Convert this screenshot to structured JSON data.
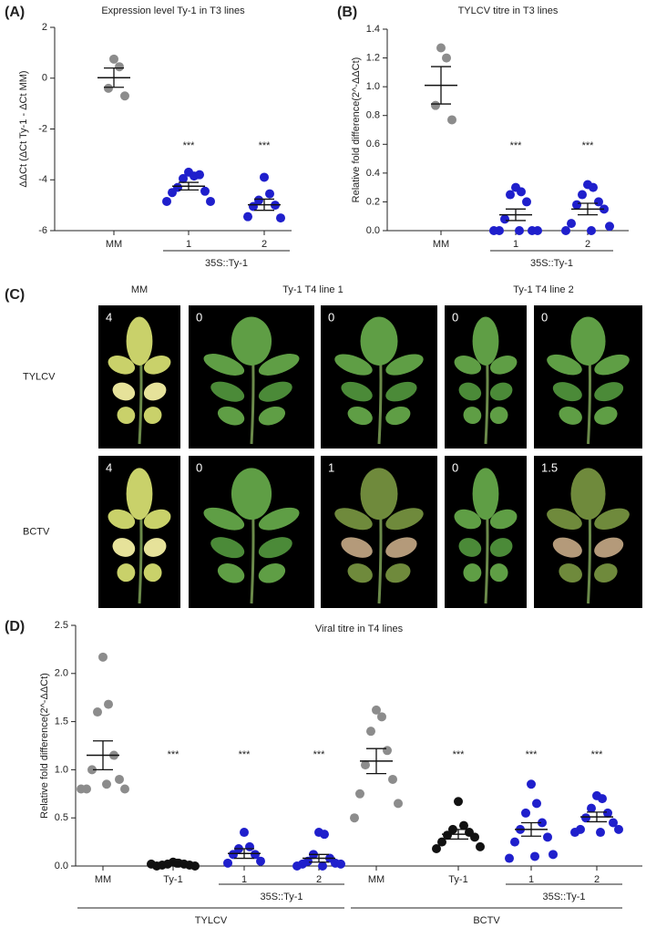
{
  "chart_data": [
    {
      "type": "dot",
      "panel": "(A)",
      "title": "Expression level Ty-1 in T3 lines",
      "ylabel": "ΔΔCt (ΔCt Ty-1 - ΔCt MM)",
      "categories": [
        "MM",
        "1",
        "2"
      ],
      "colors": [
        "#8c8c8c",
        "#1f1fcc",
        "#1f1fcc"
      ],
      "points": [
        [
          0.75,
          0.45,
          -0.4,
          -0.7
        ],
        [
          -3.7,
          -3.85,
          -3.95,
          -3.8,
          -4.3,
          -4.45,
          -4.5,
          -4.85,
          -4.85
        ],
        [
          -3.9,
          -4.55,
          -4.8,
          -5.0,
          -5.05,
          -5.5,
          -5.45
        ]
      ],
      "means": [
        0.02,
        -4.25,
        -4.98
      ],
      "sems": [
        0.38,
        0.15,
        0.22
      ],
      "annotations": [
        null,
        "***",
        "***"
      ],
      "groups": [
        {
          "label": "35S::Ty-1",
          "span": [
            1,
            2
          ]
        }
      ],
      "ylim": [
        -6,
        2
      ],
      "yticks": [
        -6,
        -4,
        -2,
        0,
        2
      ]
    },
    {
      "type": "dot",
      "panel": "(B)",
      "title": "TYLCV titre in T3 lines",
      "ylabel": "Relative fold difference(2^-ΔΔCt)",
      "categories": [
        "MM",
        "1",
        "2"
      ],
      "colors": [
        "#8c8c8c",
        "#1f1fcc",
        "#1f1fcc"
      ],
      "points": [
        [
          1.27,
          1.2,
          0.87,
          0.77
        ],
        [
          0.3,
          0.27,
          0.25,
          0.2,
          0.08,
          0.0,
          0.0,
          0.0,
          0.0,
          0.0
        ],
        [
          0.32,
          0.3,
          0.25,
          0.2,
          0.18,
          0.15,
          0.05,
          0.03,
          0.0,
          0.0
        ]
      ],
      "means": [
        1.01,
        0.11,
        0.15
      ],
      "sems": [
        0.13,
        0.04,
        0.04
      ],
      "annotations": [
        null,
        "***",
        "***"
      ],
      "groups": [
        {
          "label": "35S::Ty-1",
          "span": [
            1,
            2
          ]
        }
      ],
      "ylim": [
        0,
        1.4
      ],
      "yticks": [
        {
          "value": 0,
          "label": "0.0"
        },
        0.2,
        0.4,
        0.6,
        0.8,
        {
          "value": 1,
          "label": "1.0"
        },
        1.2,
        1.4
      ]
    },
    {
      "type": "dot",
      "panel": "(D)",
      "title": "Viral titre in T4 lines",
      "ylabel": "Relative fold difference(2^-ΔΔCt)",
      "categories": [
        "MM",
        "Ty-1",
        "1",
        "2",
        "MM",
        "Ty-1",
        "1",
        "2"
      ],
      "colors": [
        "#8c8c8c",
        "#111111",
        "#1f1fcc",
        "#1f1fcc",
        "#8c8c8c",
        "#111111",
        "#1f1fcc",
        "#1f1fcc"
      ],
      "points": [
        [
          2.17,
          1.68,
          1.6,
          1.15,
          1.0,
          0.9,
          0.8,
          0.8,
          0.8,
          0.85
        ],
        [
          0.04,
          0.03,
          0.02,
          0.02,
          0.01,
          0.01,
          0.0,
          0.0,
          0.02,
          0.03
        ],
        [
          0.35,
          0.2,
          0.18,
          0.12,
          0.12,
          0.05,
          0.03
        ],
        [
          0.35,
          0.33,
          0.12,
          0.08,
          0.05,
          0.03,
          0.02,
          0.02,
          0.0,
          0.0
        ],
        [
          1.62,
          1.55,
          1.4,
          1.2,
          1.05,
          0.9,
          0.75,
          0.65,
          0.5
        ],
        [
          0.67,
          0.42,
          0.38,
          0.35,
          0.32,
          0.3,
          0.25,
          0.2,
          0.18
        ],
        [
          0.85,
          0.65,
          0.55,
          0.45,
          0.38,
          0.3,
          0.25,
          0.12,
          0.08,
          0.1
        ],
        [
          0.73,
          0.7,
          0.6,
          0.55,
          0.5,
          0.45,
          0.38,
          0.38,
          0.35,
          0.35
        ]
      ],
      "means": [
        1.15,
        0.02,
        0.13,
        0.08,
        1.09,
        0.33,
        0.38,
        0.51
      ],
      "sems": [
        0.15,
        0.005,
        0.05,
        0.04,
        0.13,
        0.05,
        0.07,
        0.05
      ],
      "annotations": [
        null,
        "***",
        "***",
        "***",
        null,
        "***",
        "***",
        "***"
      ],
      "groups": [
        {
          "label": "35S::Ty-1",
          "span": [
            2,
            3
          ]
        },
        {
          "label": "35S::Ty-1",
          "span": [
            6,
            7
          ]
        }
      ],
      "supergroups": [
        {
          "label": "TYLCV",
          "span": [
            0,
            3
          ]
        },
        {
          "label": "BCTV",
          "span": [
            4,
            7
          ]
        }
      ],
      "ylim": [
        0,
        2.5
      ],
      "yticks": [
        {
          "value": 0,
          "label": "0.0"
        },
        0.5,
        {
          "value": 1,
          "label": "1.0"
        },
        1.5,
        {
          "value": 2,
          "label": "2.0"
        },
        2.5
      ]
    }
  ],
  "photo_panel": {
    "panel": "(C)",
    "columns": [
      {
        "label": "MM",
        "span": 1
      },
      {
        "label": "Ty-1 T4 line 1",
        "span": 2
      },
      {
        "label": "Ty-1 T4 line 2",
        "span": 2
      }
    ],
    "rows": [
      {
        "label": "TYLCV",
        "scores": [
          4,
          0,
          0,
          0,
          0
        ]
      },
      {
        "label": "BCTV",
        "scores": [
          4,
          0,
          1,
          0,
          1.5
        ]
      }
    ]
  }
}
